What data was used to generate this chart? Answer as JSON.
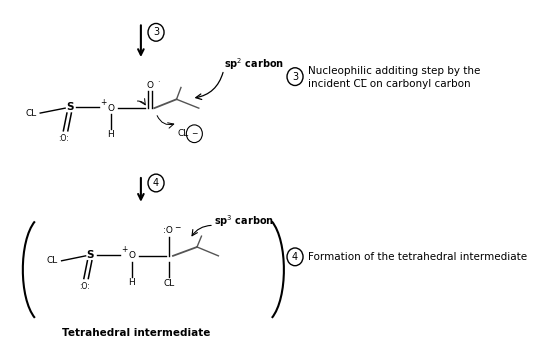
{
  "bg_color": "#ffffff",
  "fig_width": 5.54,
  "fig_height": 3.64,
  "dpi": 100,
  "note3_line1": "Nucleophilic additing step by the",
  "note3_line2": "incident CL̅ on carbonyl carbon",
  "note4_text": "Formation of the tetrahedral intermediate",
  "tetrahedral_label": "Tetrahedral intermediate",
  "font_size_mol": 6.5,
  "font_size_note": 7.5
}
